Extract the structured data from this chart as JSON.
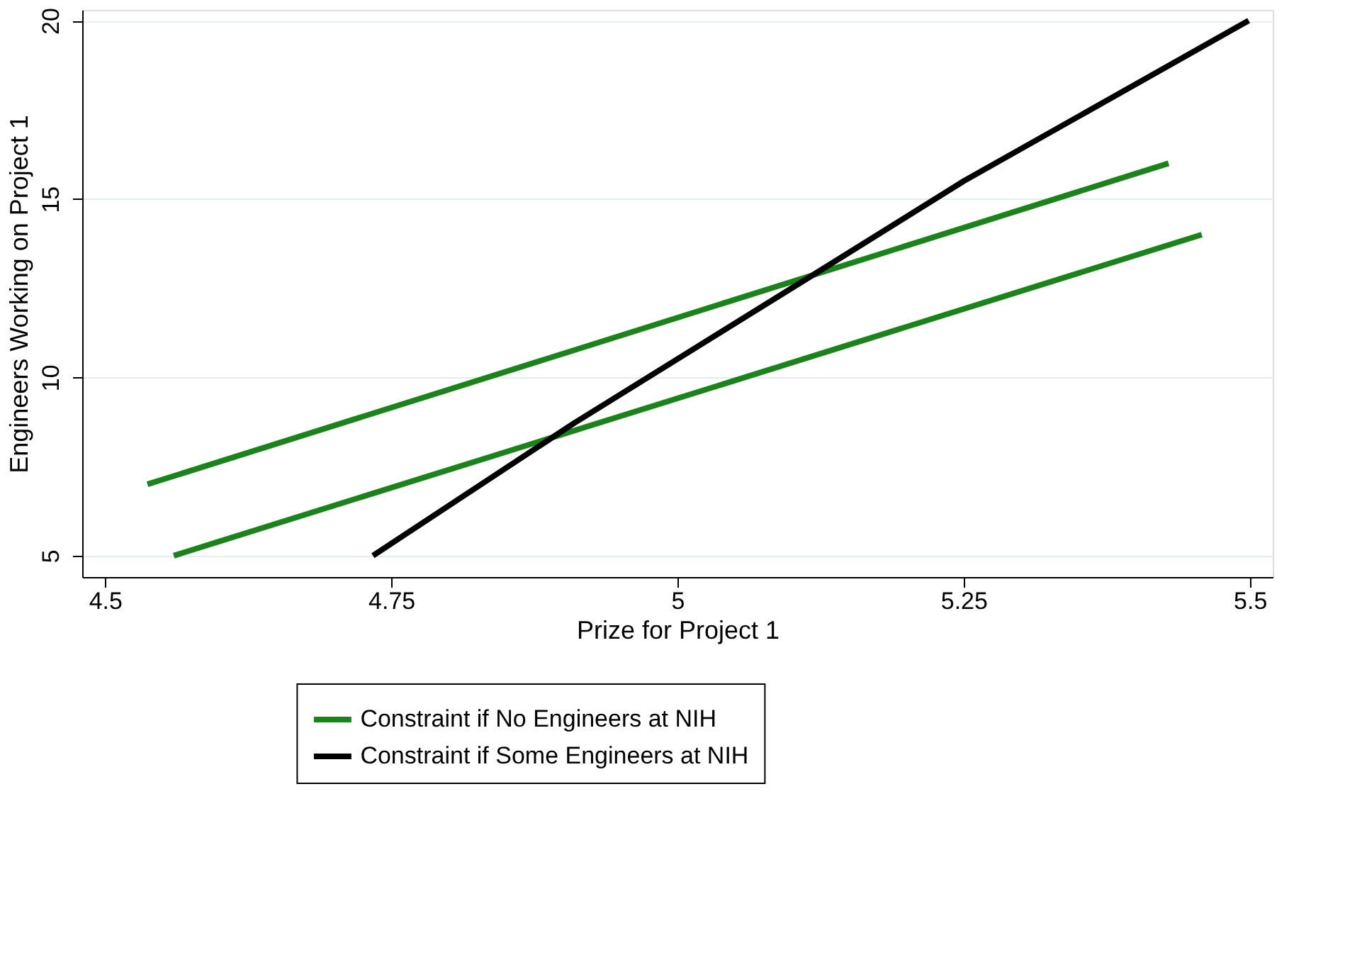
{
  "chart_data": {
    "type": "line",
    "xlabel": "Prize for Project 1",
    "ylabel": "Engineers Working on Project 1",
    "xlim": [
      4.48,
      5.52
    ],
    "ylim": [
      4.4,
      20.3
    ],
    "xticks": [
      4.5,
      4.75,
      5,
      5.25,
      5.5
    ],
    "yticks": [
      5,
      10,
      15,
      20
    ],
    "grid": "y",
    "legend": "bottom",
    "marker": "none",
    "line_style": "solid",
    "series": [
      {
        "name": "Constraint if No Engineers at NIH",
        "color": "#1a841a",
        "x": [
          4.537,
          5.429
        ],
        "values": [
          7,
          16
        ]
      },
      {
        "color": "#1a841a",
        "x": [
          4.56,
          5.458
        ],
        "values": [
          5,
          14
        ]
      },
      {
        "name": "Constraint if Some Engineers at NIH",
        "color": "#000000",
        "x": [
          4.734,
          4.909,
          5.135,
          5.25,
          5.499
        ],
        "values": [
          5,
          8.7,
          13.2,
          15.5,
          20
        ]
      }
    ]
  }
}
